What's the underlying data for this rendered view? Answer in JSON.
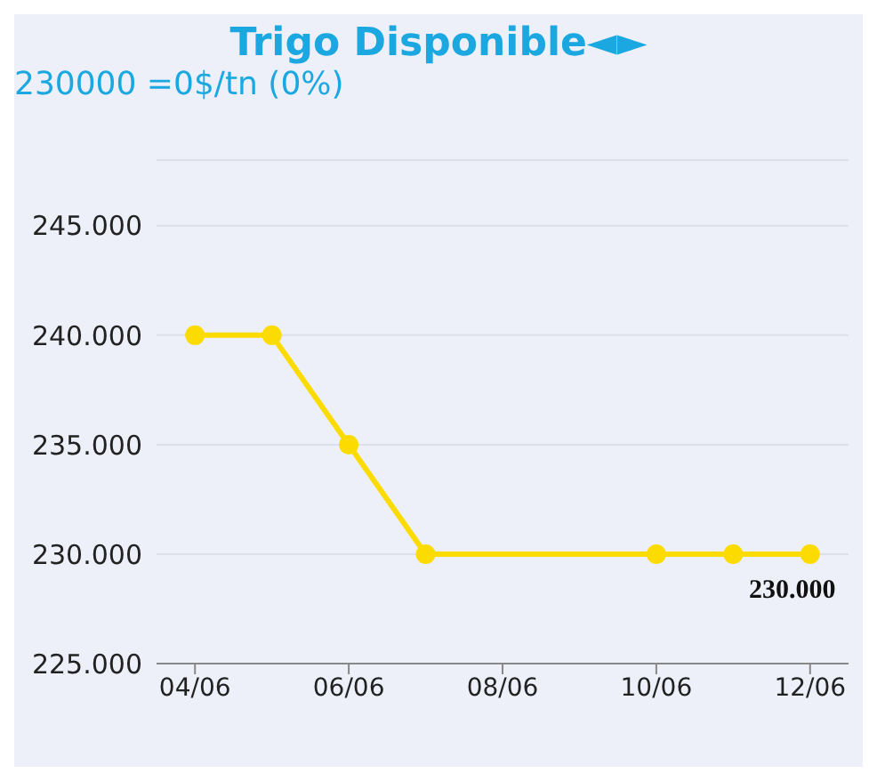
{
  "chart_data": {
    "type": "line",
    "title": "Trigo Disponible◄►",
    "subtitle": "230000 =0$/tn (0%)",
    "x": [
      "--06-04",
      "--06-05",
      "--06-06",
      "--06-07",
      "--06-10",
      "--06-11",
      "--06-12"
    ],
    "series": [
      {
        "color": "#fcdc00",
        "values": [
          240000,
          240000,
          235000,
          230000,
          230000,
          230000,
          230000
        ]
      }
    ],
    "xlim": [
      "--06-03T12:00",
      "--06-12T12:00"
    ],
    "xticks": [
      {
        "value": "--06-04",
        "label": "04/06"
      },
      {
        "value": "--06-06",
        "label": "06/06"
      },
      {
        "value": "--06-08",
        "label": "08/06"
      },
      {
        "value": "--06-10",
        "label": "10/06"
      },
      {
        "value": "--06-12",
        "label": "12/06"
      }
    ],
    "ylim": [
      225000,
      248000
    ],
    "yticks": [
      {
        "value": 225000,
        "label": "225.000"
      },
      {
        "value": 230000,
        "label": "230.000"
      },
      {
        "value": 235000,
        "label": "235.000"
      },
      {
        "value": 240000,
        "label": "240.000"
      },
      {
        "value": 245000,
        "label": "245.000"
      }
    ],
    "annotations": [
      {
        "text": "230.000",
        "x": "--06-12",
        "y": 230000
      }
    ],
    "grid": "y",
    "marker": "circle",
    "line_style": "solid"
  }
}
